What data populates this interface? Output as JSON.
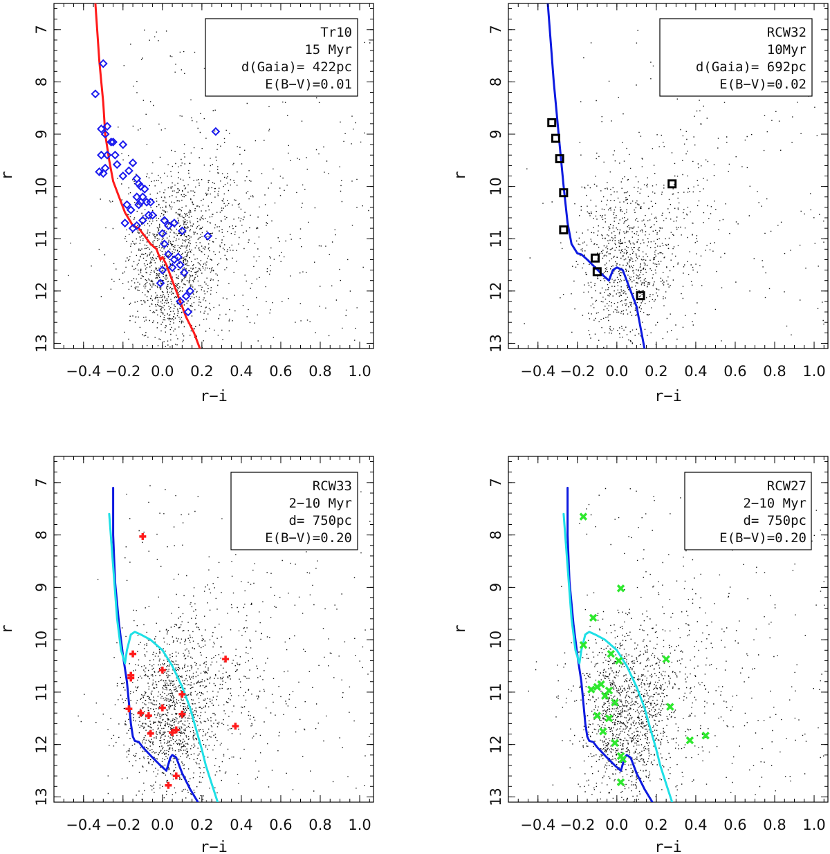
{
  "chart_data": [
    {
      "type": "scatter",
      "panel": "top-left",
      "xlabel": "r−i",
      "ylabel": "r",
      "xlim": [
        -0.55,
        1.07
      ],
      "ylim": [
        13.1,
        6.5
      ],
      "xticks": [
        "−0.4",
        "−0.2",
        "0.0",
        "0.2",
        "0.4",
        "0.6",
        "0.8",
        "1.0"
      ],
      "yticks": [
        "7",
        "8",
        "9",
        "10",
        "11",
        "12",
        "13"
      ],
      "legend_position": "top-right",
      "legend": [
        "Tr10",
        "15 Myr",
        "d(Gaia)= 422pc",
        "E(B−V)=0.01"
      ],
      "field_density": "high",
      "isochrones": [
        {
          "name": "isochrone",
          "color": "#ff1a1a",
          "x": [
            -0.34,
            -0.32,
            -0.3,
            -0.29,
            -0.27,
            -0.25,
            -0.22,
            -0.19,
            -0.15,
            -0.12,
            -0.09,
            -0.06,
            -0.03,
            -0.01,
            0.0,
            0.02,
            0.05,
            0.08,
            0.12,
            0.16,
            0.19
          ],
          "y": [
            6.5,
            7.6,
            8.4,
            9.0,
            9.5,
            9.9,
            10.2,
            10.5,
            10.75,
            10.8,
            10.95,
            11.1,
            11.2,
            11.4,
            11.35,
            11.5,
            11.8,
            12.1,
            12.5,
            12.8,
            13.1
          ]
        }
      ],
      "members": {
        "marker": "diamond",
        "color": "#1a1aee",
        "points": [
          [
            -0.3,
            7.65
          ],
          [
            -0.34,
            8.23
          ],
          [
            -0.31,
            8.9
          ],
          [
            -0.28,
            8.85
          ],
          [
            -0.29,
            9.0
          ],
          [
            -0.26,
            9.15
          ],
          [
            -0.25,
            9.15
          ],
          [
            -0.2,
            9.2
          ],
          [
            -0.31,
            9.4
          ],
          [
            -0.28,
            9.4
          ],
          [
            -0.24,
            9.4
          ],
          [
            -0.29,
            9.65
          ],
          [
            -0.32,
            9.72
          ],
          [
            -0.3,
            9.75
          ],
          [
            -0.23,
            9.58
          ],
          [
            -0.15,
            9.55
          ],
          [
            -0.17,
            9.7
          ],
          [
            -0.2,
            9.8
          ],
          [
            -0.13,
            9.85
          ],
          [
            -0.12,
            9.95
          ],
          [
            -0.11,
            10.0
          ],
          [
            -0.09,
            10.05
          ],
          [
            -0.13,
            10.2
          ],
          [
            -0.11,
            10.3
          ],
          [
            -0.1,
            10.2
          ],
          [
            -0.12,
            10.35
          ],
          [
            -0.18,
            10.35
          ],
          [
            -0.16,
            10.45
          ],
          [
            -0.08,
            10.3
          ],
          [
            -0.06,
            10.3
          ],
          [
            -0.05,
            10.55
          ],
          [
            -0.07,
            10.55
          ],
          [
            -0.1,
            10.65
          ],
          [
            -0.13,
            10.75
          ],
          [
            -0.19,
            10.7
          ],
          [
            -0.15,
            10.8
          ],
          [
            0.06,
            10.7
          ],
          [
            0.1,
            10.85
          ],
          [
            0.01,
            10.65
          ],
          [
            0.03,
            10.75
          ],
          [
            0.0,
            10.9
          ],
          [
            0.01,
            11.1
          ],
          [
            0.23,
            10.95
          ],
          [
            0.03,
            11.3
          ],
          [
            0.08,
            11.35
          ],
          [
            0.06,
            11.4
          ],
          [
            0.05,
            11.55
          ],
          [
            0.09,
            11.5
          ],
          [
            0.0,
            11.6
          ],
          [
            0.11,
            11.65
          ],
          [
            -0.01,
            11.85
          ],
          [
            0.14,
            12.0
          ],
          [
            0.12,
            12.1
          ],
          [
            0.09,
            12.2
          ],
          [
            0.13,
            12.4
          ],
          [
            0.27,
            8.95
          ]
        ]
      }
    },
    {
      "type": "scatter",
      "panel": "top-right",
      "xlabel": "r−i",
      "ylabel": "r",
      "xlim": [
        -0.55,
        1.07
      ],
      "ylim": [
        13.1,
        6.5
      ],
      "xticks": [
        "−0.4",
        "−0.2",
        "0.0",
        "0.2",
        "0.4",
        "0.6",
        "0.8",
        "1.0"
      ],
      "yticks": [
        "7",
        "8",
        "9",
        "10",
        "11",
        "12",
        "13"
      ],
      "legend_position": "top-right",
      "legend": [
        "RCW32",
        "10Myr",
        "d(Gaia)= 692pc",
        "E(B−V)=0.02"
      ],
      "field_density": "medium",
      "isochrones": [
        {
          "name": "isochrone",
          "color": "#0d1ae0",
          "x": [
            -0.35,
            -0.32,
            -0.29,
            -0.27,
            -0.25,
            -0.23,
            -0.2,
            -0.18,
            -0.15,
            -0.11,
            -0.07,
            -0.04,
            -0.02,
            0.0,
            0.03,
            0.06,
            0.1,
            0.14
          ],
          "y": [
            6.5,
            8.0,
            9.2,
            10.0,
            10.7,
            11.1,
            11.28,
            11.3,
            11.4,
            11.55,
            11.7,
            11.8,
            11.6,
            11.55,
            11.6,
            11.9,
            12.3,
            13.1
          ]
        }
      ],
      "members": {
        "marker": "square",
        "color": "#000000",
        "points": [
          [
            -0.33,
            8.78
          ],
          [
            -0.31,
            9.08
          ],
          [
            -0.29,
            9.47
          ],
          [
            -0.27,
            10.12
          ],
          [
            -0.27,
            10.83
          ],
          [
            -0.11,
            11.37
          ],
          [
            -0.1,
            11.63
          ],
          [
            0.12,
            12.09
          ],
          [
            0.28,
            9.95
          ]
        ]
      }
    },
    {
      "type": "scatter",
      "panel": "bottom-left",
      "xlabel": "r−i",
      "ylabel": "r",
      "xlim": [
        -0.55,
        1.07
      ],
      "ylim": [
        13.1,
        6.5
      ],
      "xticks": [
        "−0.4",
        "−0.2",
        "0.0",
        "0.2",
        "0.4",
        "0.6",
        "0.8",
        "1.0"
      ],
      "yticks": [
        "7",
        "8",
        "9",
        "10",
        "11",
        "12",
        "13"
      ],
      "legend_position": "top-right",
      "legend": [
        "RCW33",
        "2−10 Myr",
        "d= 750pc",
        "E(B−V)=0.20"
      ],
      "field_density": "high",
      "isochrones": [
        {
          "name": "isochrone-2myr",
          "color": "#0d1ae0",
          "x": [
            -0.25,
            -0.25,
            -0.24,
            -0.22,
            -0.2,
            -0.18,
            -0.17,
            -0.16,
            -0.15,
            -0.14,
            -0.12,
            -0.1,
            -0.05,
            -0.01,
            0.02,
            0.04,
            0.05,
            0.07,
            0.1,
            0.14,
            0.18
          ],
          "y": [
            7.1,
            8.0,
            8.9,
            9.7,
            10.3,
            10.8,
            11.2,
            11.6,
            11.85,
            11.93,
            11.95,
            12.05,
            12.25,
            12.4,
            12.5,
            12.25,
            12.2,
            12.25,
            12.55,
            12.85,
            13.1
          ]
        },
        {
          "name": "isochrone-10myr",
          "color": "#1ee0e6",
          "x": [
            -0.27,
            -0.25,
            -0.23,
            -0.21,
            -0.19,
            -0.18,
            -0.16,
            -0.14,
            -0.11,
            -0.06,
            0.0,
            0.05,
            0.1,
            0.14,
            0.17,
            0.2,
            0.22,
            0.25,
            0.28
          ],
          "y": [
            7.6,
            8.6,
            9.6,
            10.2,
            10.45,
            10.2,
            9.9,
            9.85,
            9.9,
            10.0,
            10.2,
            10.5,
            10.9,
            11.3,
            11.7,
            12.1,
            12.4,
            12.75,
            13.1
          ]
        }
      ],
      "members": {
        "marker": "plus",
        "color": "#ff1a1a",
        "points": [
          [
            -0.1,
            8.03
          ],
          [
            -0.15,
            10.27
          ],
          [
            -0.16,
            10.68
          ],
          [
            -0.16,
            10.73
          ],
          [
            0.0,
            10.58
          ],
          [
            0.32,
            10.37
          ],
          [
            0.1,
            11.04
          ],
          [
            -0.17,
            11.32
          ],
          [
            -0.11,
            11.4
          ],
          [
            -0.07,
            11.45
          ],
          [
            -0.0,
            11.3
          ],
          [
            0.1,
            11.42
          ],
          [
            0.37,
            11.65
          ],
          [
            -0.06,
            11.79
          ],
          [
            0.05,
            11.77
          ],
          [
            0.07,
            11.72
          ],
          [
            0.07,
            12.6
          ],
          [
            0.03,
            12.78
          ]
        ]
      }
    },
    {
      "type": "scatter",
      "panel": "bottom-right",
      "xlabel": "r−i",
      "ylabel": "r",
      "xlim": [
        -0.55,
        1.07
      ],
      "ylim": [
        13.1,
        6.5
      ],
      "xticks": [
        "−0.4",
        "−0.2",
        "0.0",
        "0.2",
        "0.4",
        "0.6",
        "0.8",
        "1.0"
      ],
      "yticks": [
        "7",
        "8",
        "9",
        "10",
        "11",
        "12",
        "13"
      ],
      "legend_position": "top-right",
      "legend": [
        "RCW27",
        "2−10 Myr",
        "d= 750pc",
        "E(B−V)=0.20"
      ],
      "field_density": "high",
      "isochrones": [
        {
          "name": "isochrone-2myr",
          "color": "#0d1ae0",
          "x": [
            -0.25,
            -0.25,
            -0.24,
            -0.22,
            -0.2,
            -0.18,
            -0.17,
            -0.16,
            -0.15,
            -0.14,
            -0.12,
            -0.1,
            -0.05,
            -0.01,
            0.02,
            0.04,
            0.05,
            0.07,
            0.1,
            0.14,
            0.18
          ],
          "y": [
            7.1,
            8.0,
            8.9,
            9.7,
            10.3,
            10.8,
            11.2,
            11.6,
            11.85,
            11.93,
            11.95,
            12.05,
            12.25,
            12.4,
            12.5,
            12.25,
            12.2,
            12.25,
            12.55,
            12.85,
            13.1
          ]
        },
        {
          "name": "isochrone-10myr",
          "color": "#1ee0e6",
          "x": [
            -0.27,
            -0.25,
            -0.23,
            -0.21,
            -0.19,
            -0.18,
            -0.16,
            -0.14,
            -0.11,
            -0.06,
            0.0,
            0.05,
            0.1,
            0.14,
            0.17,
            0.2,
            0.22,
            0.25,
            0.28
          ],
          "y": [
            7.6,
            8.6,
            9.6,
            10.2,
            10.45,
            10.2,
            9.9,
            9.85,
            9.9,
            10.0,
            10.2,
            10.5,
            10.9,
            11.3,
            11.7,
            12.1,
            12.4,
            12.75,
            13.1
          ]
        }
      ],
      "members": {
        "marker": "cross",
        "color": "#2ee82e",
        "points": [
          [
            -0.17,
            7.65
          ],
          [
            0.02,
            9.02
          ],
          [
            -0.12,
            9.58
          ],
          [
            -0.17,
            10.1
          ],
          [
            -0.03,
            10.27
          ],
          [
            0.01,
            10.4
          ],
          [
            0.25,
            10.37
          ],
          [
            -0.08,
            10.85
          ],
          [
            -0.1,
            10.9
          ],
          [
            -0.13,
            10.95
          ],
          [
            -0.04,
            10.97
          ],
          [
            -0.06,
            11.07
          ],
          [
            -0.01,
            11.2
          ],
          [
            0.27,
            11.28
          ],
          [
            -0.1,
            11.45
          ],
          [
            -0.04,
            11.5
          ],
          [
            -0.07,
            11.75
          ],
          [
            -0.01,
            11.97
          ],
          [
            0.37,
            11.92
          ],
          [
            0.45,
            11.83
          ],
          [
            0.02,
            12.22
          ],
          [
            0.03,
            12.28
          ],
          [
            0.02,
            12.72
          ]
        ]
      }
    }
  ]
}
